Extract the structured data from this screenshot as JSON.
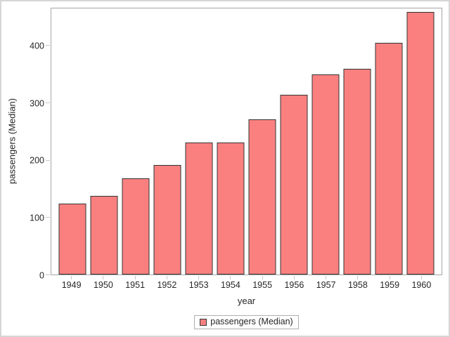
{
  "chart_data": {
    "type": "bar",
    "title": "",
    "xlabel": "year",
    "ylabel": "passengers (Median)",
    "series_name": "passengers (Median)",
    "categories": [
      "1949",
      "1950",
      "1951",
      "1952",
      "1953",
      "1954",
      "1955",
      "1956",
      "1957",
      "1958",
      "1959",
      "1960"
    ],
    "values": [
      125,
      137.5,
      169,
      192,
      232,
      231.5,
      272,
      315,
      351.5,
      360.5,
      406.5,
      461
    ],
    "yticks": [
      0,
      100,
      200,
      300,
      400
    ],
    "ylim": [
      0,
      466.7
    ],
    "grid": false,
    "legend_position": "bottom-center",
    "legend_label": "passengers (Median)",
    "colors": {
      "bar_fill": "#FA8080",
      "bar_border": "#333333",
      "plot_border": "#a6a6a6",
      "tick": "#c6c6c6",
      "text": "#262626",
      "legend_border": "#aeaeae",
      "outer_border": "#d6d6d6"
    }
  }
}
